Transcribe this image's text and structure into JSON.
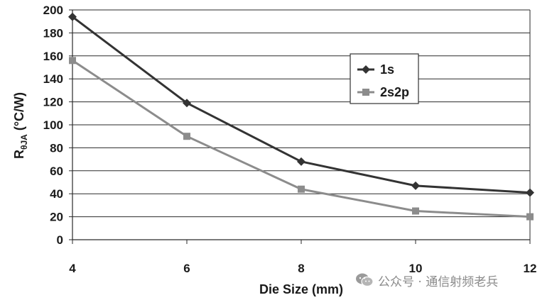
{
  "chart_data": {
    "type": "line",
    "title": "",
    "xlabel": "Die Size (mm)",
    "ylabel_main": "R",
    "ylabel_sub": "θJA",
    "ylabel_unit": " (°C/W)",
    "x": [
      4,
      6,
      8,
      10,
      12
    ],
    "xlim": [
      4,
      12
    ],
    "ylim": [
      0,
      200
    ],
    "xticks": [
      "4",
      "6",
      "8",
      "10",
      "12"
    ],
    "yticks": [
      "0",
      "20",
      "40",
      "60",
      "80",
      "100",
      "120",
      "140",
      "160",
      "180",
      "200"
    ],
    "grid": "horizontal",
    "legend_position": "top-right",
    "series": [
      {
        "name": "1s",
        "values": [
          194,
          119,
          68,
          47,
          41
        ],
        "color": "#333333",
        "marker": "diamond"
      },
      {
        "name": "2s2p",
        "values": [
          156,
          90,
          44,
          25,
          20
        ],
        "color": "#8c8c8c",
        "marker": "square"
      }
    ]
  },
  "watermark": {
    "text": "公众号 · 通信射频老兵",
    "icon": "wechat-icon"
  }
}
